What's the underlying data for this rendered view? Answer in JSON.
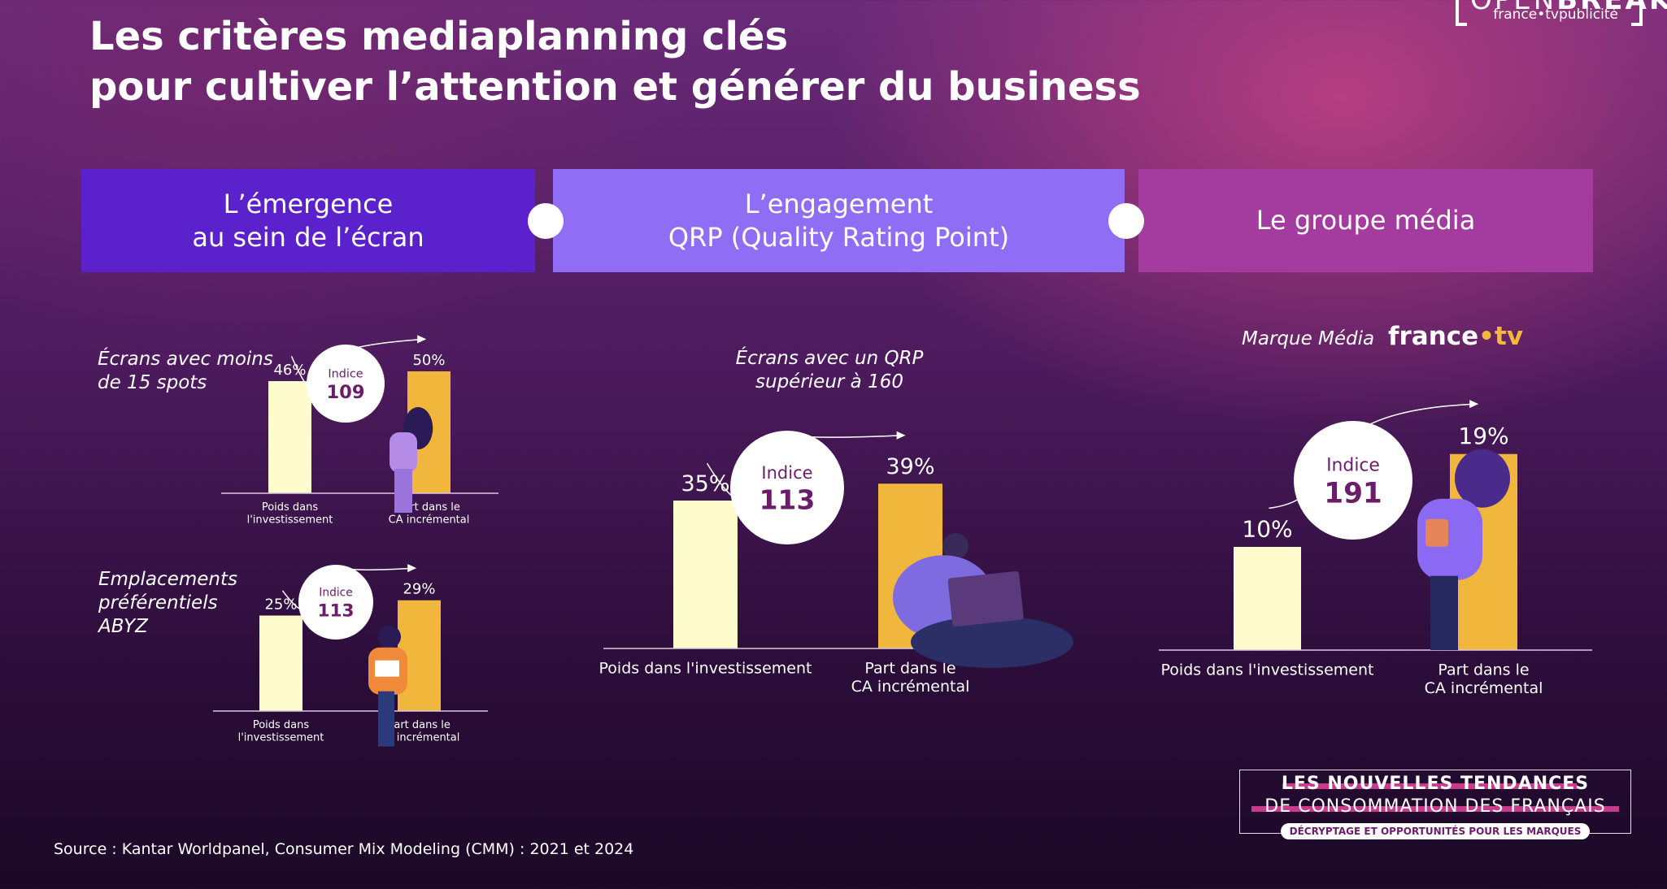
{
  "page": {
    "title_line1": "Les critères mediaplanning clés",
    "title_line2": "pour cultiver l’attention et générer du business",
    "logo": {
      "open": "OPEN",
      "break": "BREAK",
      "sub": "france•tvpublicité"
    },
    "source": "Source : Kantar Worldpanel, Consumer Mix Modeling (CMM) : 2021 et 2024",
    "colors": {
      "bar_invest": "#fefbcd",
      "bar_ca": "#f1b73d",
      "pill1": "#5a21cc",
      "pill2": "#8f6df5",
      "pill3": "#a33c9e",
      "bubble_text": "#6b1c6a"
    }
  },
  "pillars": [
    {
      "label": "L’émergence\nau sein de l’écran"
    },
    {
      "label": "L’engagement\nQRP (Quality Rating Point)"
    },
    {
      "label": "Le groupe média"
    }
  ],
  "annotations": {
    "ecrans_15": "Écrans avec moins\nde 15 spots",
    "abyz": "Emplacements\npréférentiels\nABYZ",
    "qrp": "Écrans avec un QRP\nsupérieur à 160",
    "marque": "Marque Média"
  },
  "brand": {
    "france": "france",
    "dot": "•",
    "tv": "tv"
  },
  "badge": {
    "line1": "LES NOUVELLES TENDANCES",
    "line2": "DE CONSOMMATION DES FRANÇAIS",
    "line3": "DÉCRYPTAGE ET OPPORTUNITÉS POUR LES MARQUES"
  },
  "chart_data": [
    {
      "type": "bar",
      "title": "Écrans avec moins de 15 spots",
      "categories": [
        "Poids dans l'investissement",
        "Part dans le CA incrémental"
      ],
      "values": [
        46,
        50
      ],
      "value_labels": [
        "46%",
        "50%"
      ],
      "bubble": {
        "label": "Indice",
        "value": "109"
      }
    },
    {
      "type": "bar",
      "title": "Emplacements préférentiels ABYZ",
      "categories": [
        "Poids dans l'investissement",
        "Part dans le CA incrémental"
      ],
      "values": [
        25,
        29
      ],
      "value_labels": [
        "25%",
        "29%"
      ],
      "bubble": {
        "label": "Indice",
        "value": "113"
      }
    },
    {
      "type": "bar",
      "title": "Écrans avec un QRP supérieur à 160",
      "categories": [
        "Poids dans l'investissement",
        "Part dans le CA incrémental"
      ],
      "values": [
        35,
        39
      ],
      "value_labels": [
        "35%",
        "39%"
      ],
      "bubble": {
        "label": "Indice",
        "value": "113"
      }
    },
    {
      "type": "bar",
      "title": "Marque Média france.tv",
      "categories": [
        "Poids dans l'investissement",
        "Part dans le CA incrémental"
      ],
      "values": [
        10,
        19
      ],
      "value_labels": [
        "10%",
        "19%"
      ],
      "bubble": {
        "label": "Indice",
        "value": "191"
      }
    }
  ]
}
